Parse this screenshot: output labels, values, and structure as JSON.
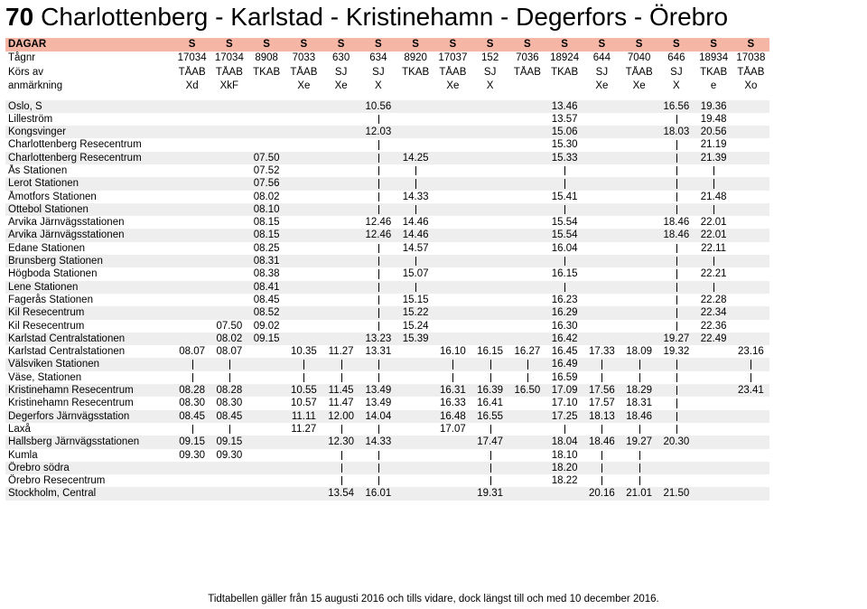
{
  "title": {
    "number": "70",
    "text": "Charlottenberg - Karlstad - Kristinehamn - Degerfors - Örebro"
  },
  "header": {
    "label": "DAGAR",
    "days": [
      "S",
      "S",
      "S",
      "S",
      "S",
      "S",
      "S",
      "S",
      "S",
      "S",
      "S",
      "S",
      "S",
      "S",
      "S",
      "S"
    ]
  },
  "meta_rows": [
    {
      "label": "Tågnr",
      "values": [
        "17034",
        "17034",
        "8908",
        "7033",
        "630",
        "634",
        "8920",
        "17037",
        "152",
        "7036",
        "18924",
        "644",
        "7040",
        "646",
        "18934",
        "17038"
      ]
    },
    {
      "label": "Körs av",
      "values": [
        "TÅAB",
        "TÅAB",
        "TKAB",
        "TÅAB",
        "SJ",
        "SJ",
        "TKAB",
        "TÅAB",
        "SJ",
        "TÅAB",
        "TKAB",
        "SJ",
        "TÅAB",
        "SJ",
        "TKAB",
        "TÅAB"
      ]
    },
    {
      "label": "anmärkning",
      "values": [
        "Xd",
        "XkF",
        "",
        "Xe",
        "Xe",
        "X",
        "",
        "Xe",
        "X",
        "",
        "",
        "Xe",
        "Xe",
        "X",
        "e",
        "Xo"
      ]
    }
  ],
  "stops": [
    {
      "name": "Oslo, S",
      "times": [
        "",
        "",
        "",
        "",
        "",
        "10.56",
        "",
        "",
        "",
        "",
        "13.46",
        "",
        "",
        "16.56",
        "19.36",
        ""
      ]
    },
    {
      "name": "Lilleström",
      "times": [
        "",
        "",
        "",
        "",
        "",
        "|",
        "",
        "",
        "",
        "",
        "13.57",
        "",
        "",
        "|",
        "19.48",
        ""
      ]
    },
    {
      "name": "Kongsvinger",
      "times": [
        "",
        "",
        "",
        "",
        "",
        "12.03",
        "",
        "",
        "",
        "",
        "15.06",
        "",
        "",
        "18.03",
        "20.56",
        ""
      ]
    },
    {
      "name": "Charlottenberg Resecentrum",
      "times": [
        "",
        "",
        "",
        "",
        "",
        "|",
        "",
        "",
        "",
        "",
        "15.30",
        "",
        "",
        "|",
        "21.19",
        ""
      ]
    },
    {
      "name": "Charlottenberg Resecentrum",
      "times": [
        "",
        "",
        "07.50",
        "",
        "",
        "|",
        "14.25",
        "",
        "",
        "",
        "15.33",
        "",
        "",
        "|",
        "21.39",
        ""
      ]
    },
    {
      "name": "Ås Stationen",
      "times": [
        "",
        "",
        "07.52",
        "",
        "",
        "|",
        "|",
        "",
        "",
        "",
        "|",
        "",
        "",
        "|",
        "|",
        ""
      ]
    },
    {
      "name": "Lerot Stationen",
      "times": [
        "",
        "",
        "07.56",
        "",
        "",
        "|",
        "|",
        "",
        "",
        "",
        "|",
        "",
        "",
        "|",
        "|",
        ""
      ]
    },
    {
      "name": "Åmotfors Stationen",
      "times": [
        "",
        "",
        "08.02",
        "",
        "",
        "|",
        "14.33",
        "",
        "",
        "",
        "15.41",
        "",
        "",
        "|",
        "21.48",
        ""
      ]
    },
    {
      "name": "Ottebol Stationen",
      "times": [
        "",
        "",
        "08.10",
        "",
        "",
        "|",
        "|",
        "",
        "",
        "",
        "|",
        "",
        "",
        "|",
        "|",
        ""
      ]
    },
    {
      "name": "Arvika Järnvägsstationen",
      "times": [
        "",
        "",
        "08.15",
        "",
        "",
        "12.46",
        "14.46",
        "",
        "",
        "",
        "15.54",
        "",
        "",
        "18.46",
        "22.01",
        ""
      ]
    },
    {
      "name": "Arvika Järnvägsstationen",
      "times": [
        "",
        "",
        "08.15",
        "",
        "",
        "12.46",
        "14.46",
        "",
        "",
        "",
        "15.54",
        "",
        "",
        "18.46",
        "22.01",
        ""
      ]
    },
    {
      "name": "Edane Stationen",
      "times": [
        "",
        "",
        "08.25",
        "",
        "",
        "|",
        "14.57",
        "",
        "",
        "",
        "16.04",
        "",
        "",
        "|",
        "22.11",
        ""
      ]
    },
    {
      "name": "Brunsberg Stationen",
      "times": [
        "",
        "",
        "08.31",
        "",
        "",
        "|",
        "|",
        "",
        "",
        "",
        "|",
        "",
        "",
        "|",
        "|",
        ""
      ]
    },
    {
      "name": "Högboda Stationen",
      "times": [
        "",
        "",
        "08.38",
        "",
        "",
        "|",
        "15.07",
        "",
        "",
        "",
        "16.15",
        "",
        "",
        "|",
        "22.21",
        ""
      ]
    },
    {
      "name": "Lene Stationen",
      "times": [
        "",
        "",
        "08.41",
        "",
        "",
        "|",
        "|",
        "",
        "",
        "",
        "|",
        "",
        "",
        "|",
        "|",
        ""
      ]
    },
    {
      "name": "Fagerås Stationen",
      "times": [
        "",
        "",
        "08.45",
        "",
        "",
        "|",
        "15.15",
        "",
        "",
        "",
        "16.23",
        "",
        "",
        "|",
        "22.28",
        ""
      ]
    },
    {
      "name": "Kil Resecentrum",
      "times": [
        "",
        "",
        "08.52",
        "",
        "",
        "|",
        "15.22",
        "",
        "",
        "",
        "16.29",
        "",
        "",
        "|",
        "22.34",
        ""
      ]
    },
    {
      "name": "Kil Resecentrum",
      "times": [
        "",
        "07.50",
        "09.02",
        "",
        "",
        "|",
        "15.24",
        "",
        "",
        "",
        "16.30",
        "",
        "",
        "|",
        "22.36",
        ""
      ]
    },
    {
      "name": "Karlstad Centralstationen",
      "times": [
        "",
        "08.02",
        "09.15",
        "",
        "",
        "13.23",
        "15.39",
        "",
        "",
        "",
        "16.42",
        "",
        "",
        "19.27",
        "22.49",
        ""
      ]
    },
    {
      "name": "Karlstad Centralstationen",
      "times": [
        "08.07",
        "08.07",
        "",
        "10.35",
        "11.27",
        "13.31",
        "",
        "16.10",
        "16.15",
        "16.27",
        "16.45",
        "17.33",
        "18.09",
        "19.32",
        "",
        "23.16"
      ]
    },
    {
      "name": "Välsviken Stationen",
      "times": [
        "|",
        "|",
        "",
        "|",
        "|",
        "|",
        "",
        "|",
        "|",
        "|",
        "16.49",
        "|",
        "|",
        "|",
        "",
        "|"
      ]
    },
    {
      "name": "Väse, Stationen",
      "times": [
        "|",
        "|",
        "",
        "|",
        "|",
        "|",
        "",
        "|",
        "|",
        "|",
        "16.59",
        "|",
        "|",
        "|",
        "",
        "|"
      ]
    },
    {
      "name": "Kristinehamn Resecentrum",
      "times": [
        "08.28",
        "08.28",
        "",
        "10.55",
        "11.45",
        "13.49",
        "",
        "16.31",
        "16.39",
        "16.50",
        "17.09",
        "17.56",
        "18.29",
        "|",
        "",
        "23.41"
      ]
    },
    {
      "name": "Kristinehamn Resecentrum",
      "times": [
        "08.30",
        "08.30",
        "",
        "10.57",
        "11.47",
        "13.49",
        "",
        "16.33",
        "16.41",
        "",
        "17.10",
        "17.57",
        "18.31",
        "|",
        "",
        ""
      ]
    },
    {
      "name": "Degerfors Järnvägsstation",
      "times": [
        "08.45",
        "08.45",
        "",
        "11.11",
        "12.00",
        "14.04",
        "",
        "16.48",
        "16.55",
        "",
        "17.25",
        "18.13",
        "18.46",
        "|",
        "",
        ""
      ]
    },
    {
      "name": "Laxå",
      "times": [
        "|",
        "|",
        "",
        "11.27",
        "|",
        "|",
        "",
        "17.07",
        "|",
        "",
        "|",
        "|",
        "|",
        "|",
        "",
        ""
      ]
    },
    {
      "name": "Hallsberg Järnvägsstationen",
      "times": [
        "09.15",
        "09.15",
        "",
        "",
        "12.30",
        "14.33",
        "",
        "",
        "17.47",
        "",
        "18.04",
        "18.46",
        "19.27",
        "20.30",
        "",
        ""
      ]
    },
    {
      "name": "Kumla",
      "times": [
        "09.30",
        "09.30",
        "",
        "",
        "|",
        "|",
        "",
        "",
        "|",
        "",
        "18.10",
        "|",
        "|",
        "",
        "",
        ""
      ]
    },
    {
      "name": "Örebro södra",
      "times": [
        "",
        "",
        "",
        "",
        "|",
        "|",
        "",
        "",
        "|",
        "",
        "18.20",
        "|",
        "|",
        "",
        "",
        ""
      ]
    },
    {
      "name": "Örebro Resecentrum",
      "times": [
        "",
        "",
        "",
        "",
        "|",
        "|",
        "",
        "",
        "|",
        "",
        "18.22",
        "|",
        "|",
        "",
        "",
        ""
      ]
    },
    {
      "name": "Stockholm, Central",
      "times": [
        "",
        "",
        "",
        "",
        "13.54",
        "16.01",
        "",
        "",
        "19.31",
        "",
        "",
        "20.16",
        "21.01",
        "21.50",
        "",
        ""
      ]
    }
  ],
  "footer": "Tidtabellen gäller från 15 augusti 2016 och tills vidare, dock längst till och med 10 december 2016."
}
